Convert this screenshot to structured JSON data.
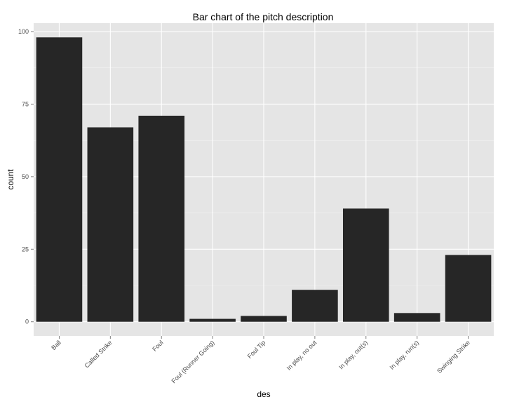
{
  "chart_data": {
    "type": "bar",
    "title": "Bar chart of the pitch description",
    "xlabel": "des",
    "ylabel": "count",
    "categories": [
      "Ball",
      "Called Strike",
      "Foul",
      "Foul (Runner Going)",
      "Foul Tip",
      "In play, no out",
      "In play, out(s)",
      "In play, run(s)",
      "Swinging Strike"
    ],
    "values": [
      98,
      67,
      71,
      1,
      2,
      11,
      39,
      3,
      23
    ],
    "ylim": [
      -4.9,
      102.9
    ],
    "yticks": [
      0,
      25,
      50,
      75,
      100
    ],
    "grid": true,
    "colors": {
      "panel": "#e5e5e5",
      "grid_major": "#ffffff",
      "grid_minor": "#f2f2f2",
      "bar": "#262626",
      "tick_text": "#4d4d4d"
    }
  }
}
